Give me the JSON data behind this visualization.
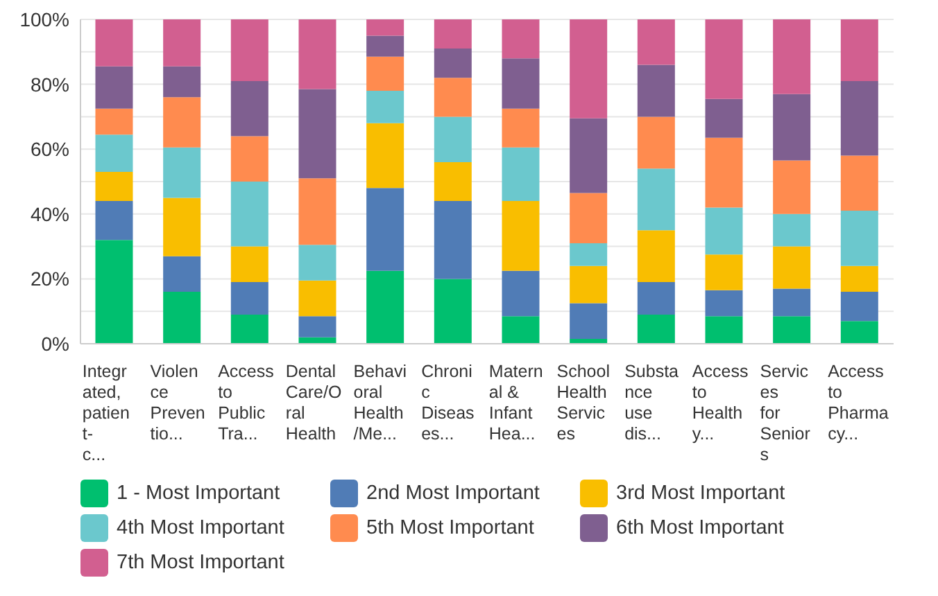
{
  "chart_data": {
    "type": "bar",
    "stacked": true,
    "categories": [
      "Integrated, patient-c...",
      "Violence Preventio...",
      "Access to Public Tra...",
      "Dental Care/Oral Health",
      "Behavioral Health/Me...",
      "Chronic Diseases...",
      "Maternal & Infant Hea...",
      "School Health Services",
      "Substance use dis...",
      "Access to Healthy...",
      "Services for Seniors",
      "Access to Pharmacy..."
    ],
    "series": [
      {
        "name": "1 - Most Important",
        "color": "#00bf6f",
        "values": [
          32,
          16,
          9,
          2,
          22.5,
          20,
          8.5,
          1.5,
          9,
          8.5,
          8.5,
          7
        ]
      },
      {
        "name": "2nd Most Important",
        "color": "#507cb6",
        "values": [
          12,
          11,
          10,
          6.5,
          25.5,
          24,
          14,
          11,
          10,
          8,
          8.5,
          9
        ]
      },
      {
        "name": "3rd Most Important",
        "color": "#f9be00",
        "values": [
          9,
          18,
          11,
          11,
          20,
          12,
          21.5,
          11.5,
          16,
          11,
          13,
          8
        ]
      },
      {
        "name": "4th Most Important",
        "color": "#6bc8cd",
        "values": [
          11.5,
          15.5,
          20,
          11,
          10,
          14,
          16.5,
          7,
          19,
          14.5,
          10,
          17
        ]
      },
      {
        "name": "5th Most Important",
        "color": "#ff8b4f",
        "values": [
          8,
          15.5,
          14,
          20.5,
          10.5,
          12,
          12,
          15.5,
          16,
          21.5,
          16.5,
          17
        ]
      },
      {
        "name": "6th Most Important",
        "color": "#7f5f90",
        "values": [
          13,
          9.5,
          17,
          27.5,
          6.5,
          9,
          15.5,
          23,
          16,
          12,
          20.5,
          23
        ]
      },
      {
        "name": "7th Most Important",
        "color": "#d25f90",
        "values": [
          14.5,
          14.5,
          19,
          21.5,
          5,
          9,
          12,
          30.5,
          14,
          24.5,
          23,
          19
        ]
      }
    ],
    "ylim": [
      0,
      100
    ],
    "yticks": [
      {
        "value": 0,
        "label": "0%"
      },
      {
        "value": 10,
        "label": null
      },
      {
        "value": 20,
        "label": "20%"
      },
      {
        "value": 30,
        "label": null
      },
      {
        "value": 40,
        "label": "40%"
      },
      {
        "value": 50,
        "label": null
      },
      {
        "value": 60,
        "label": "60%"
      },
      {
        "value": 70,
        "label": null
      },
      {
        "value": 80,
        "label": "80%"
      },
      {
        "value": 90,
        "label": null
      },
      {
        "value": 100,
        "label": "100%"
      }
    ],
    "grid": "y",
    "legend": "bottom"
  }
}
